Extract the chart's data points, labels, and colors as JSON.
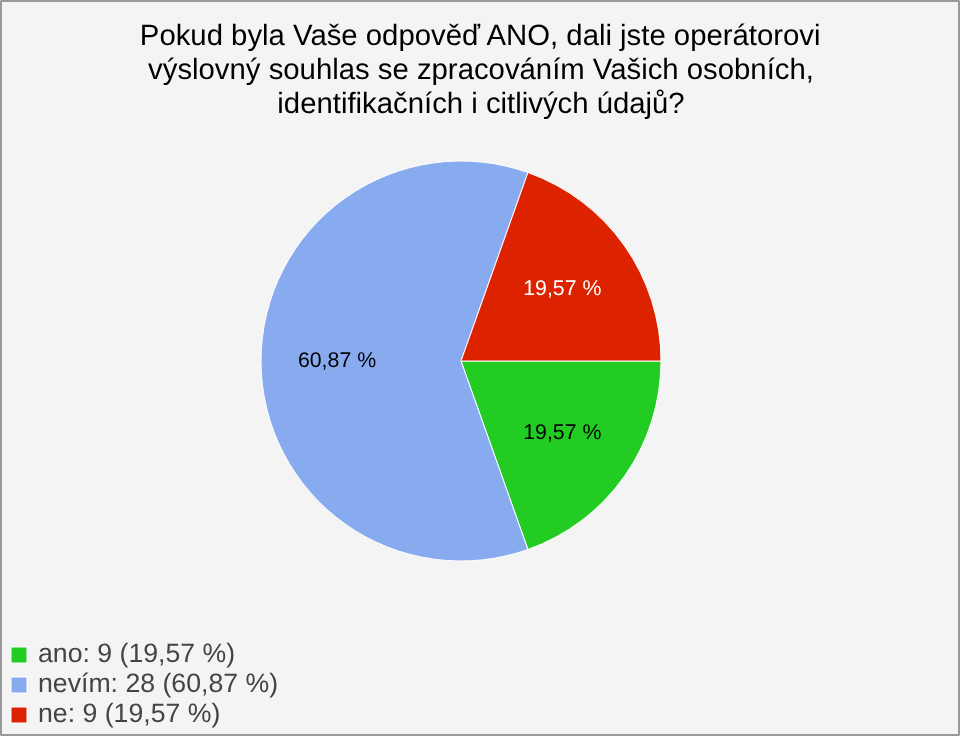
{
  "chart_data": {
    "type": "pie",
    "title": "Pokud byla Vaše odpověď ANO, dali jste operátorovi výslovný souhlas se zpracováním Vašich osobních, identifikačních i citlivých údajů?",
    "categories": [
      "ano: 9 (19,57 %)",
      "nevím: 28 (60,87 %)",
      "ne: 9 (19,57 %)"
    ],
    "values": [
      19.57,
      60.87,
      19.57
    ],
    "colors": [
      "#22cc22",
      "#88aaee",
      "#dd2200"
    ],
    "value_labels": [
      "19,57 %",
      "60,87 %",
      "19,57 %"
    ],
    "legend": "bottom left"
  }
}
